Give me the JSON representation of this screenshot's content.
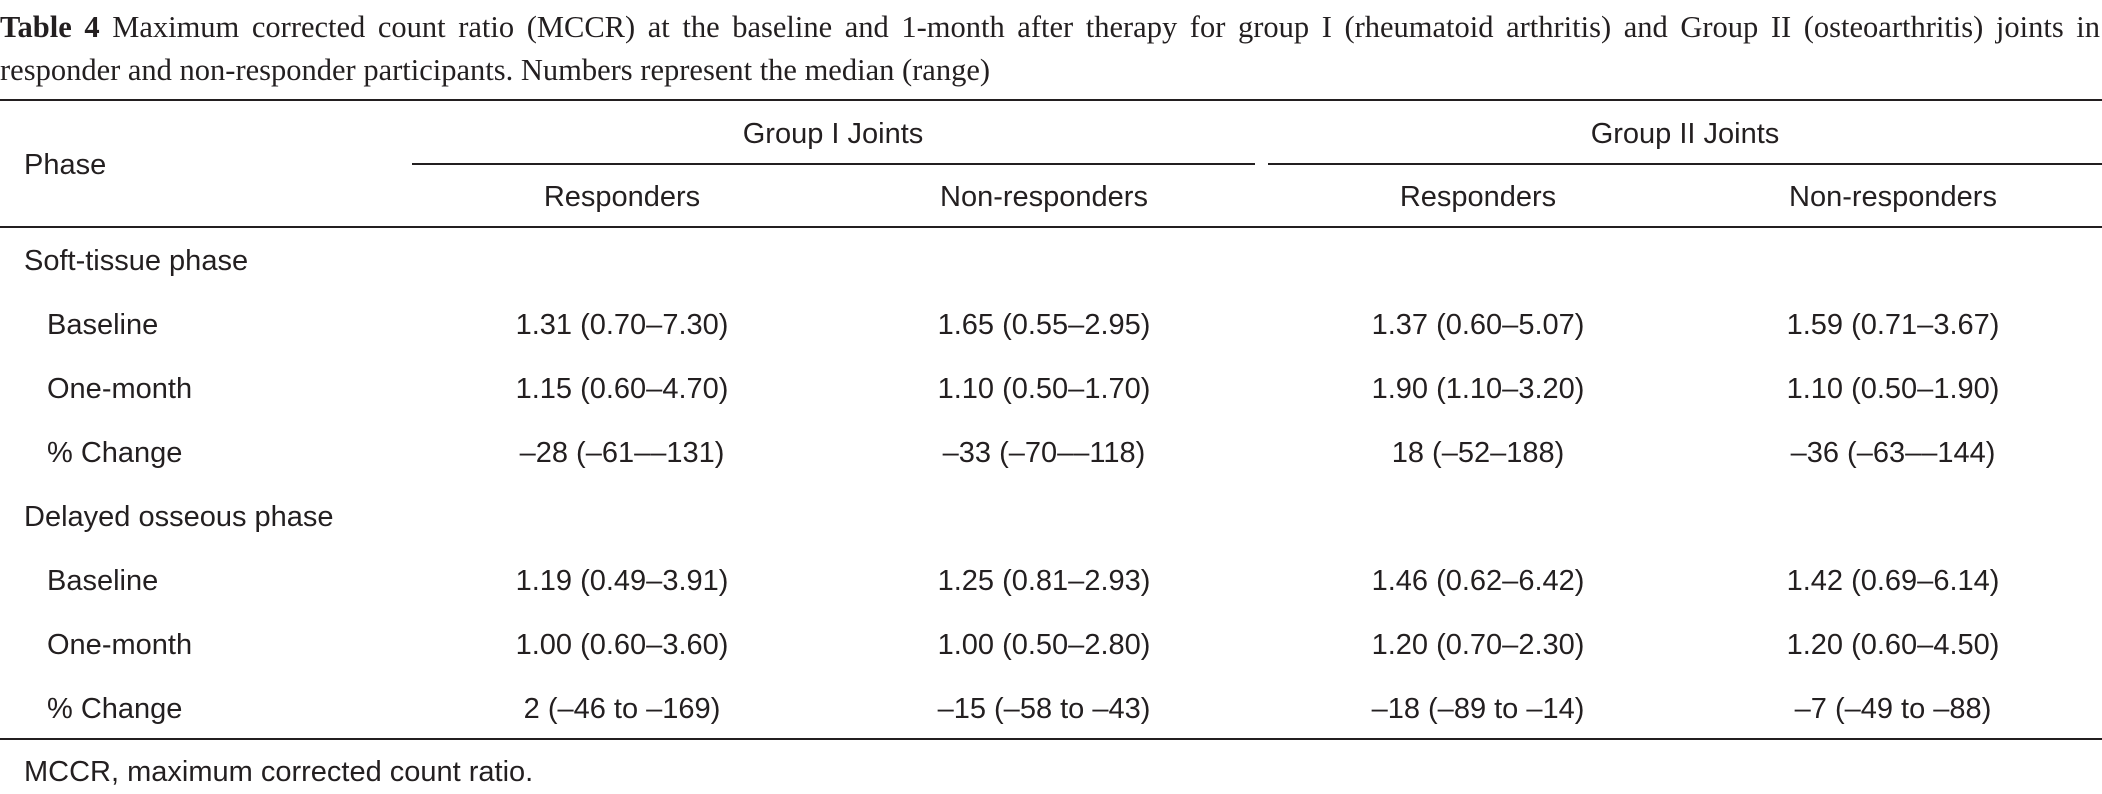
{
  "caption": {
    "label": "Table 4",
    "text": "Maximum corrected count ratio (MCCR) at the baseline and 1-month after therapy for group I (rheumatoid arthritis) and Group II (osteoarthritis) joints in responder and non-responder participants. Numbers represent the median (range)"
  },
  "header": {
    "phase": "Phase",
    "group1": "Group I Joints",
    "group2": "Group II Joints",
    "g1_responders": "Responders",
    "g1_nonresponders": "Non-responders",
    "g2_responders": "Responders",
    "g2_nonresponders": "Non-responders"
  },
  "sections": [
    {
      "title": "Soft-tissue phase",
      "rows": [
        {
          "label": "Baseline",
          "values": [
            "1.31 (0.70–7.30)",
            "1.65 (0.55–2.95)",
            "1.37 (0.60–5.07)",
            "1.59 (0.71–3.67)"
          ]
        },
        {
          "label": "One-month",
          "values": [
            "1.15 (0.60–4.70)",
            "1.10 (0.50–1.70)",
            "1.90 (1.10–3.20)",
            "1.10 (0.50–1.90)"
          ]
        },
        {
          "label": "% Change",
          "values": [
            "–28 (–61––131)",
            "–33 (–70––118)",
            "18 (–52–188)",
            "–36 (–63––144)"
          ]
        }
      ]
    },
    {
      "title": "Delayed osseous phase",
      "rows": [
        {
          "label": "Baseline",
          "values": [
            "1.19 (0.49–3.91)",
            "1.25 (0.81–2.93)",
            "1.46 (0.62–6.42)",
            "1.42 (0.69–6.14)"
          ]
        },
        {
          "label": "One-month",
          "values": [
            "1.00 (0.60–3.60)",
            "1.00 (0.50–2.80)",
            "1.20 (0.70–2.30)",
            "1.20 (0.60–4.50)"
          ]
        },
        {
          "label": "% Change",
          "values": [
            "2 (–46 to –169)",
            "–15 (–58 to –43)",
            "–18 (–89 to –14)",
            "–7 (–49 to –88)"
          ]
        }
      ]
    }
  ],
  "footnote": "MCCR, maximum corrected count ratio."
}
